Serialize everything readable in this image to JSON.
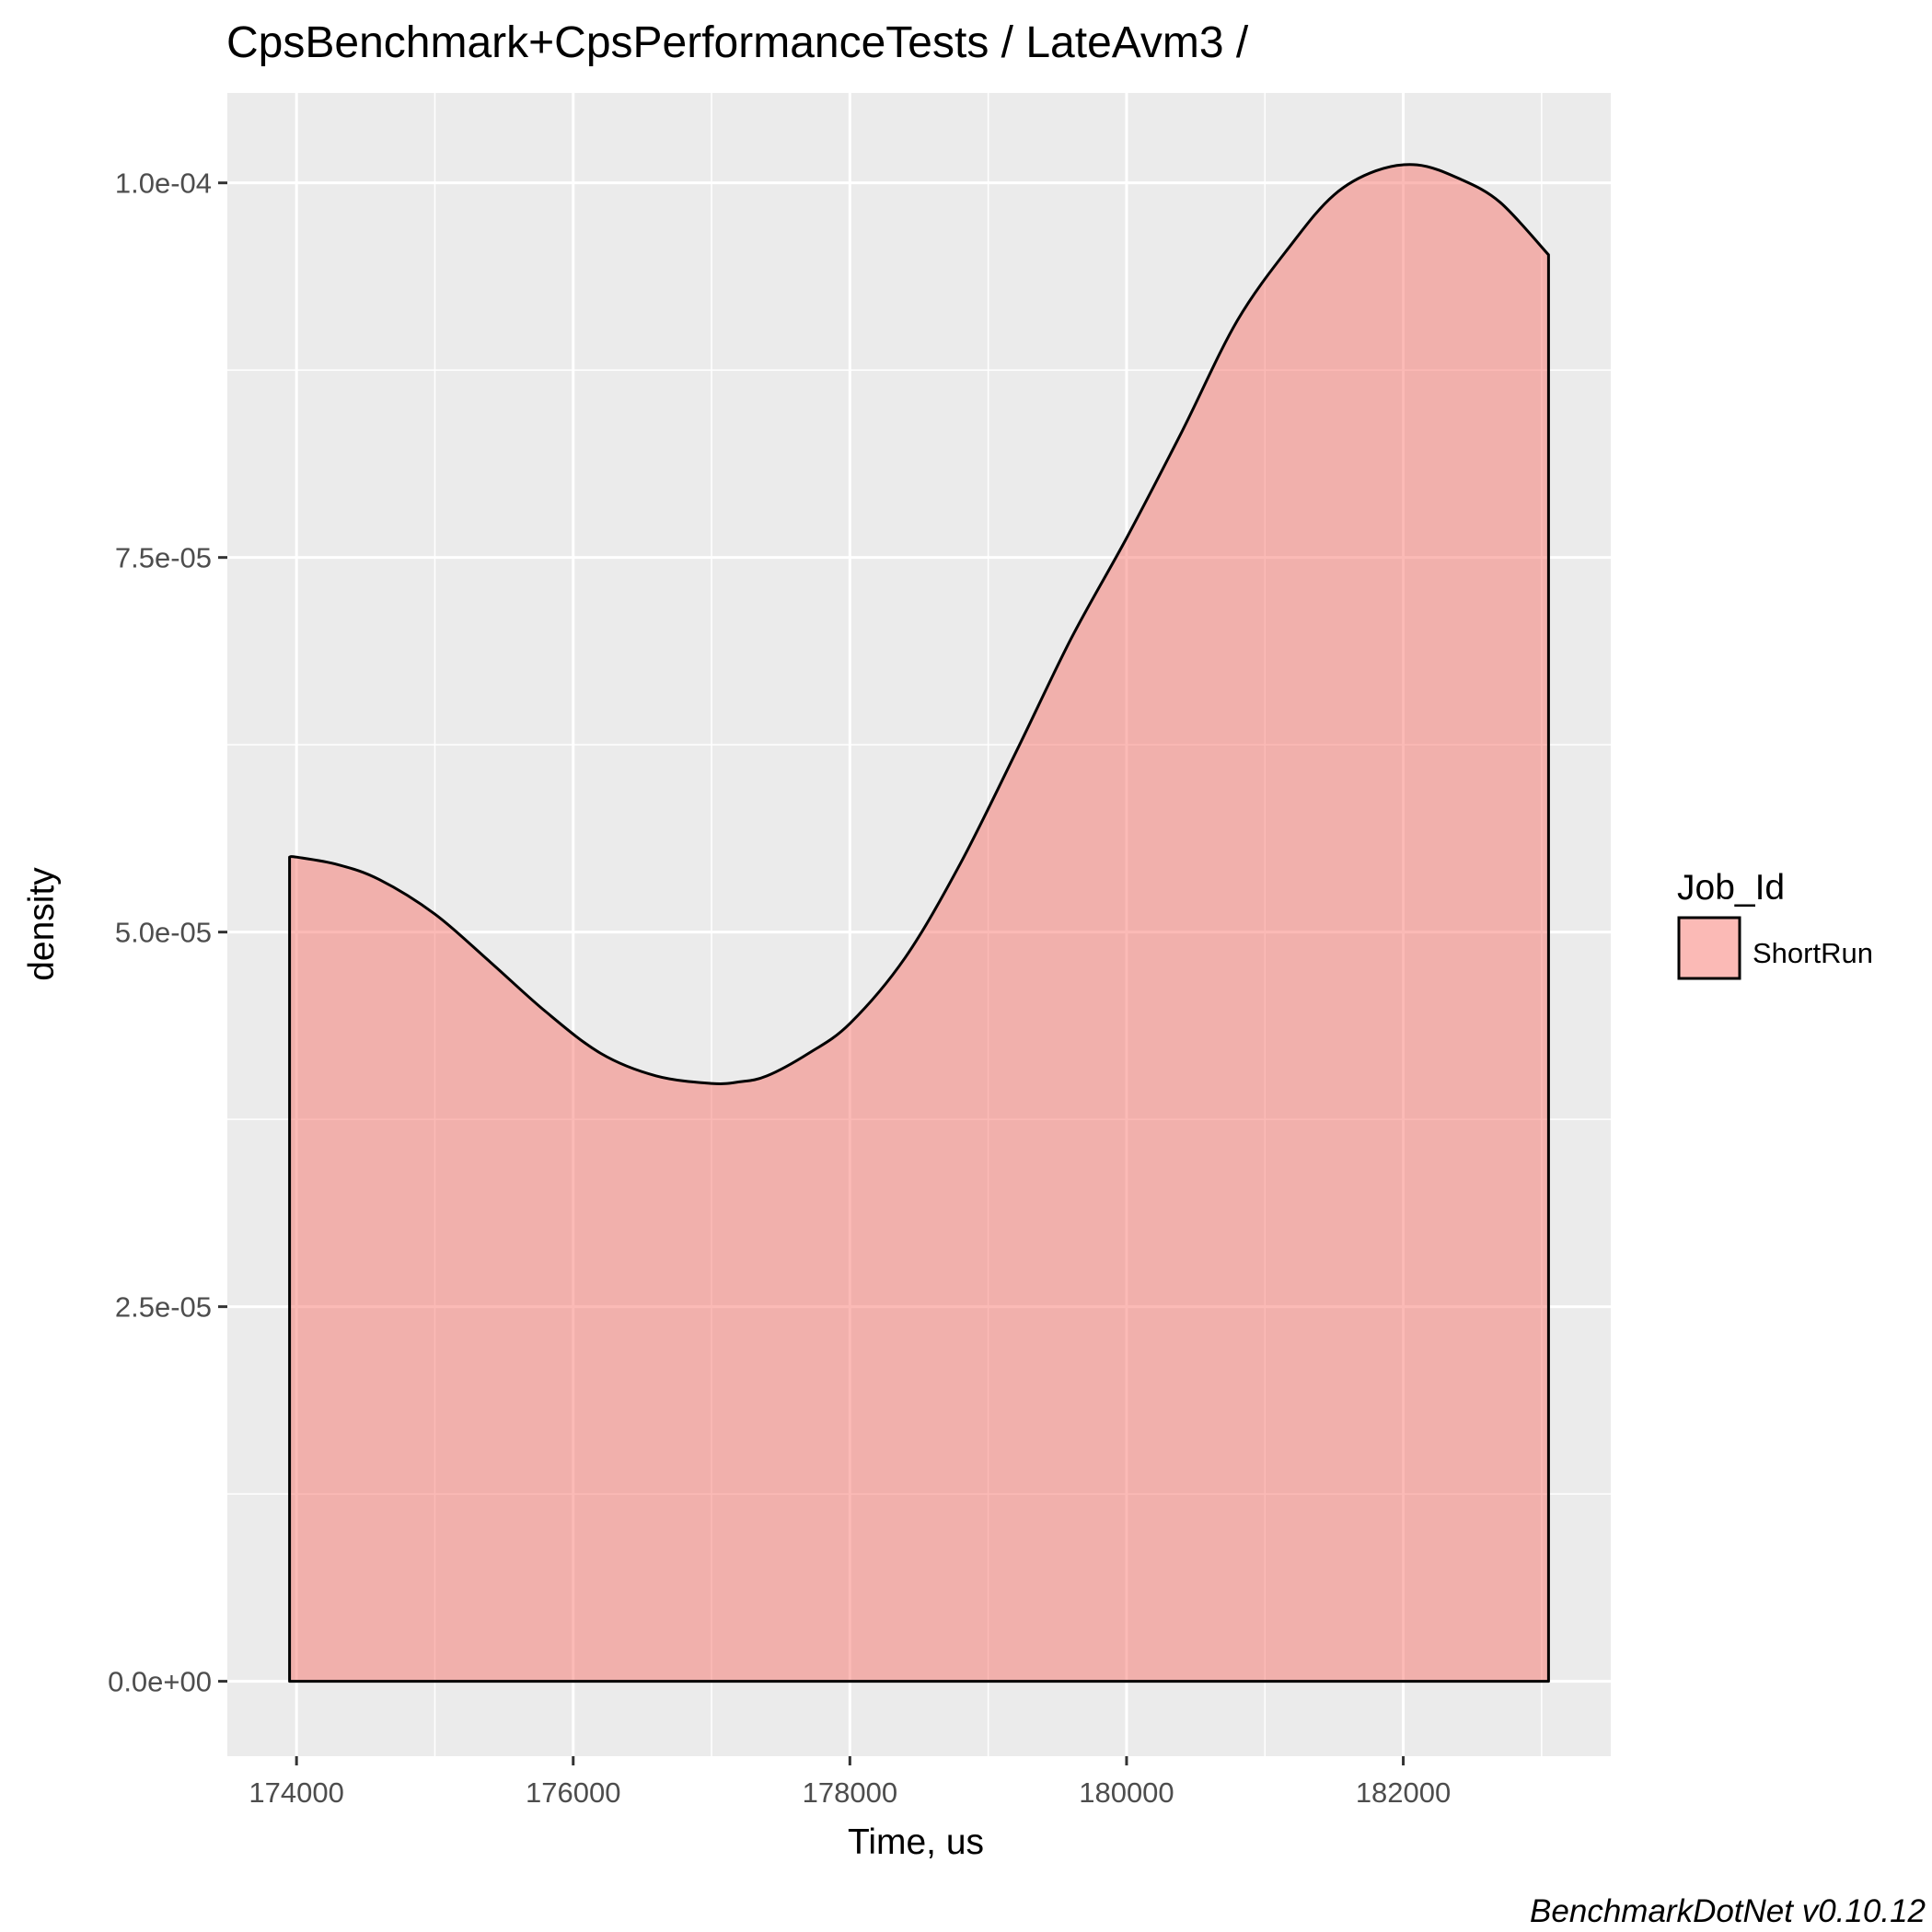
{
  "chart_data": {
    "type": "area",
    "title": "CpsBenchmark+CpsPerformanceTests / LateAvm3 /",
    "xlabel": "Time, us",
    "ylabel": "density",
    "xlim": [
      173500,
      183500
    ],
    "ylim": [
      -5e-06,
      0.000106
    ],
    "x_ticks": [
      174000,
      176000,
      178000,
      180000,
      182000
    ],
    "x_tick_labels": [
      "174000",
      "176000",
      "178000",
      "180000",
      "182000"
    ],
    "y_ticks": [
      0,
      2.5e-05,
      5e-05,
      7.5e-05,
      0.0001
    ],
    "y_tick_labels": [
      "0.0e+00",
      "2.5e-05",
      "5.0e-05",
      "7.5e-05",
      "1.0e-04"
    ],
    "grid": true,
    "legend": {
      "title": "Job_Id",
      "position": "right"
    },
    "series": [
      {
        "name": "ShortRun",
        "fill": "#f8766d",
        "x": [
          173950,
          174000,
          174300,
          174600,
          175000,
          175400,
          175800,
          176200,
          176600,
          177000,
          177200,
          177400,
          177700,
          178000,
          178400,
          178800,
          179200,
          179600,
          180000,
          180400,
          180800,
          181200,
          181500,
          181800,
          182100,
          182400,
          182700,
          183050
        ],
        "y": [
          5.5e-05,
          5.5e-05,
          5.45e-05,
          5.35e-05,
          5.12e-05,
          4.8e-05,
          4.47e-05,
          4.19e-05,
          4.04e-05,
          3.99e-05,
          4e-05,
          4.04e-05,
          4.19e-05,
          4.39e-05,
          4.83e-05,
          5.46e-05,
          6.2e-05,
          6.96e-05,
          7.63e-05,
          8.34e-05,
          9.08e-05,
          9.6e-05,
          9.92e-05,
          0.0001008,
          0.0001012,
          0.0001003,
          9.87e-05,
          9.52e-05
        ]
      }
    ]
  },
  "caption": "BenchmarkDotNet v0.10.12"
}
